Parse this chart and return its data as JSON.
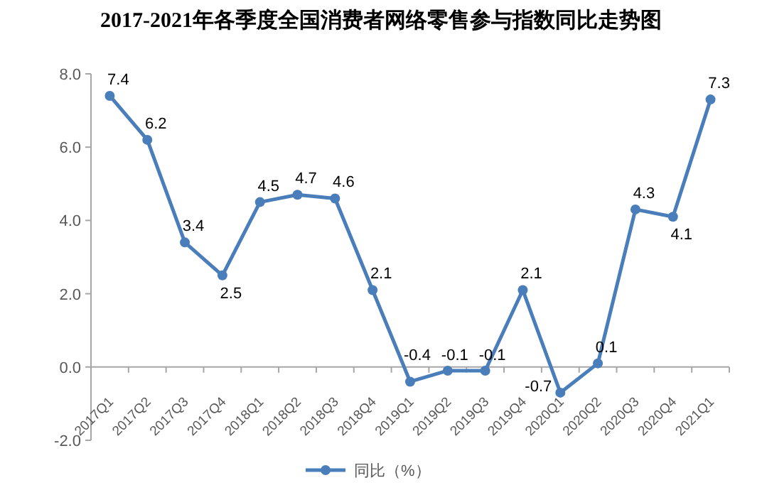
{
  "chart_data": {
    "type": "line",
    "title": "2017-2021年各季度全国消费者网络零售参与指数同比走势图",
    "categories": [
      "2017Q1",
      "2017Q2",
      "2017Q3",
      "2017Q4",
      "2018Q1",
      "2018Q2",
      "2018Q3",
      "2018Q4",
      "2019Q1",
      "2019Q2",
      "2019Q3",
      "2019Q4",
      "2020Q1",
      "2020Q2",
      "2020Q3",
      "2020Q4",
      "2021Q1"
    ],
    "series": [
      {
        "name": "同比（%）",
        "color": "#4a7ebb",
        "values": [
          7.4,
          6.2,
          3.4,
          2.5,
          4.5,
          4.7,
          4.6,
          2.1,
          -0.4,
          -0.1,
          -0.1,
          2.1,
          -0.7,
          0.1,
          4.3,
          4.1,
          7.3
        ]
      }
    ],
    "ylim": [
      -2,
      8
    ],
    "yticks": [
      {
        "value": -2,
        "label": "-2.0"
      },
      {
        "value": 0,
        "label": "0.0"
      },
      {
        "value": 2,
        "label": "2.0"
      },
      {
        "value": 4,
        "label": "4.0"
      },
      {
        "value": 6,
        "label": "6.0"
      },
      {
        "value": 8,
        "label": "8.0"
      }
    ],
    "data_labels": true,
    "legend": "bottom",
    "marker": "circle",
    "line_style": "solid"
  }
}
